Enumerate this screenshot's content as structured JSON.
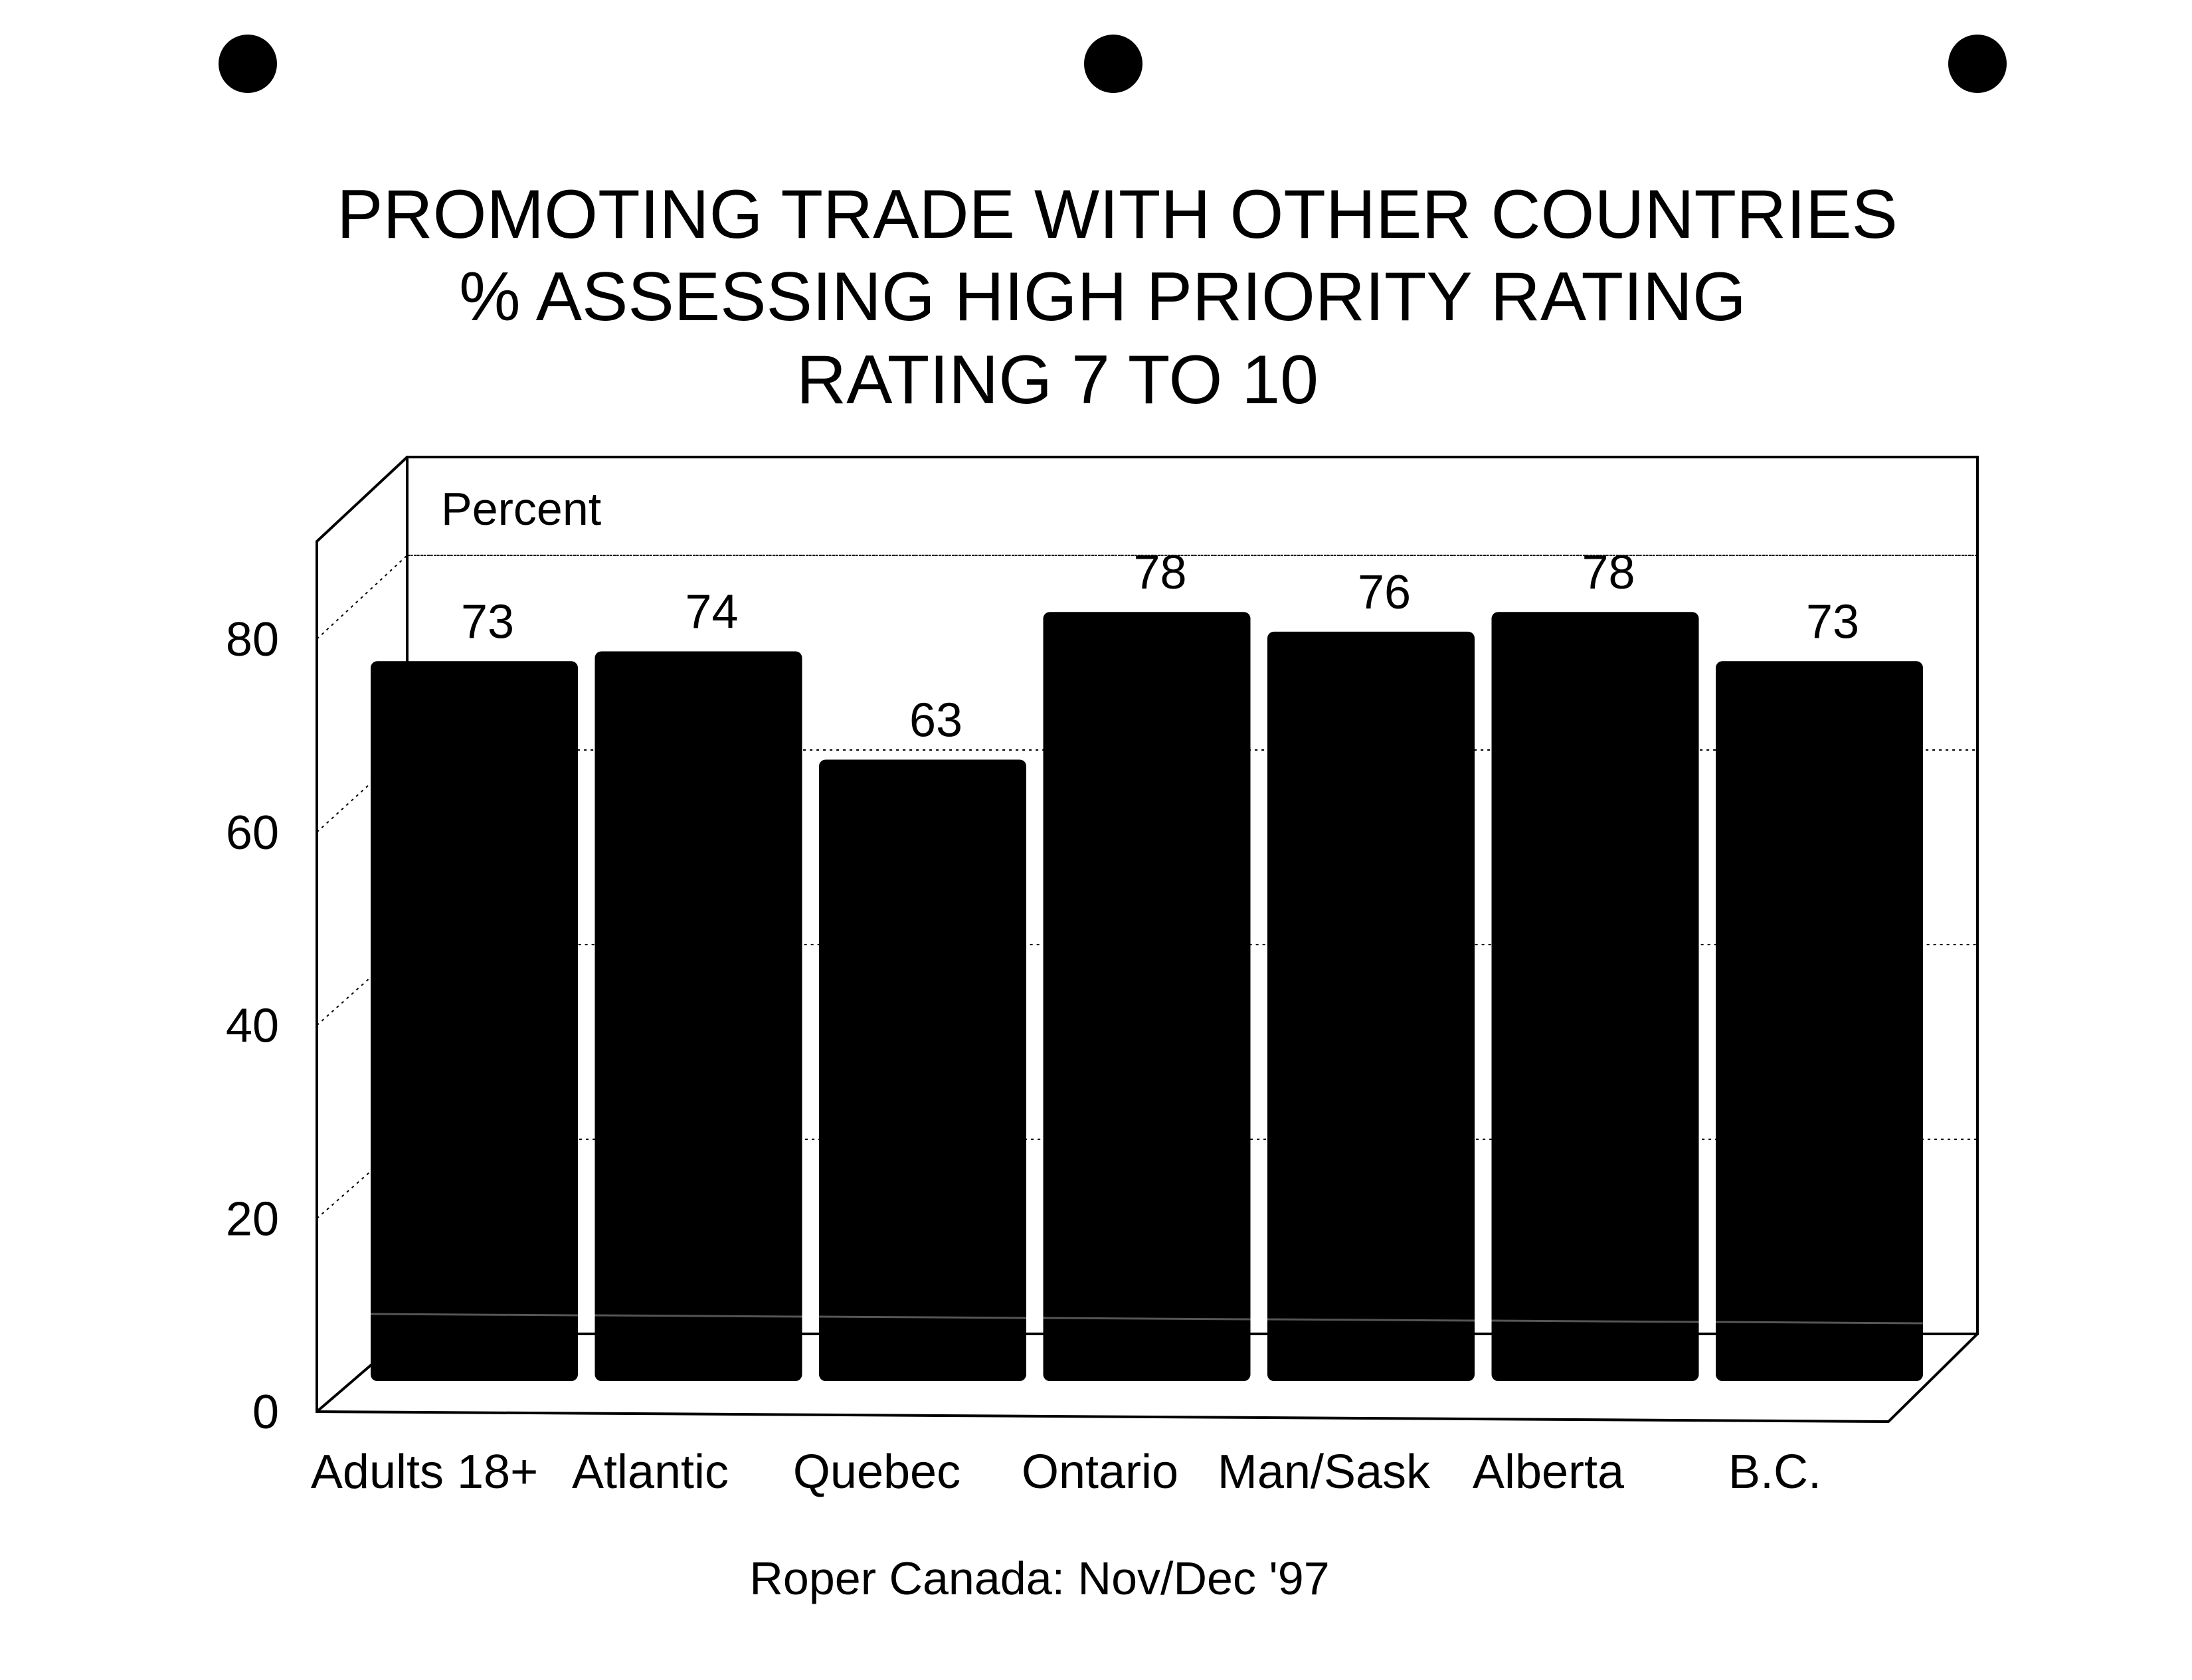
{
  "chart_data": {
    "type": "bar",
    "title": [
      "PROMOTING TRADE WITH OTHER COUNTRIES",
      "% ASSESSING HIGH PRIORITY RATING",
      "RATING 7 TO 10"
    ],
    "ylabel": "Percent",
    "xlabel": "",
    "categories": [
      "Adults 18+",
      "Atlantic",
      "Quebec",
      "Ontario",
      "Man/Sask",
      "Alberta",
      "B.C."
    ],
    "values": [
      73,
      74,
      63,
      78,
      76,
      78,
      73
    ],
    "yticks": [
      "0",
      "20",
      "40",
      "60",
      "80"
    ],
    "ylim": [
      0,
      80
    ],
    "grid": true,
    "bar_color": "#000000",
    "source": "Roper Canada: Nov/Dec '97"
  }
}
